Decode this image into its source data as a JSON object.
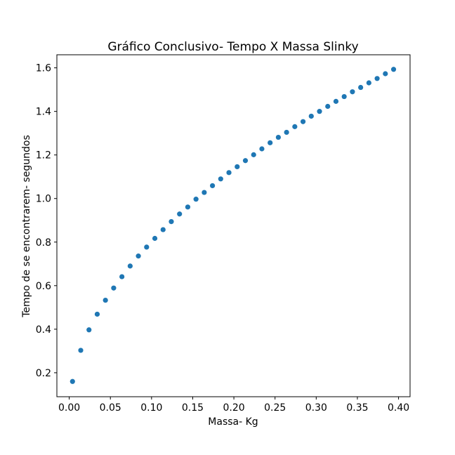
{
  "chart_data": {
    "type": "scatter",
    "title": "Gráfico Conclusivo- Tempo X Massa Slinky",
    "xlabel": "Massa- Kg",
    "ylabel": "Tempo de se encontrarem- segundos",
    "xlim": [
      -0.015,
      0.414
    ],
    "ylim": [
      0.09,
      1.66
    ],
    "xticks": [
      "0.00",
      "0.05",
      "0.10",
      "0.15",
      "0.20",
      "0.25",
      "0.30",
      "0.35",
      "0.40"
    ],
    "yticks": [
      "0.2",
      "0.4",
      "0.6",
      "0.8",
      "1.0",
      "1.2",
      "1.4",
      "1.6"
    ],
    "grid": false,
    "marker_color": "#1f77b4",
    "points": [
      {
        "x": 0.004,
        "y": 0.16
      },
      {
        "x": 0.014,
        "y": 0.303
      },
      {
        "x": 0.024,
        "y": 0.397
      },
      {
        "x": 0.034,
        "y": 0.469
      },
      {
        "x": 0.044,
        "y": 0.533
      },
      {
        "x": 0.054,
        "y": 0.589
      },
      {
        "x": 0.064,
        "y": 0.641
      },
      {
        "x": 0.074,
        "y": 0.69
      },
      {
        "x": 0.084,
        "y": 0.736
      },
      {
        "x": 0.094,
        "y": 0.777
      },
      {
        "x": 0.104,
        "y": 0.817
      },
      {
        "x": 0.114,
        "y": 0.857
      },
      {
        "x": 0.124,
        "y": 0.894
      },
      {
        "x": 0.134,
        "y": 0.929
      },
      {
        "x": 0.144,
        "y": 0.961
      },
      {
        "x": 0.154,
        "y": 0.997
      },
      {
        "x": 0.164,
        "y": 1.028
      },
      {
        "x": 0.174,
        "y": 1.059
      },
      {
        "x": 0.184,
        "y": 1.09
      },
      {
        "x": 0.194,
        "y": 1.119
      },
      {
        "x": 0.204,
        "y": 1.146
      },
      {
        "x": 0.214,
        "y": 1.174
      },
      {
        "x": 0.224,
        "y": 1.201
      },
      {
        "x": 0.234,
        "y": 1.228
      },
      {
        "x": 0.244,
        "y": 1.256
      },
      {
        "x": 0.254,
        "y": 1.281
      },
      {
        "x": 0.264,
        "y": 1.304
      },
      {
        "x": 0.274,
        "y": 1.33
      },
      {
        "x": 0.284,
        "y": 1.353
      },
      {
        "x": 0.294,
        "y": 1.378
      },
      {
        "x": 0.304,
        "y": 1.4
      },
      {
        "x": 0.314,
        "y": 1.423
      },
      {
        "x": 0.324,
        "y": 1.446
      },
      {
        "x": 0.334,
        "y": 1.468
      },
      {
        "x": 0.344,
        "y": 1.49
      },
      {
        "x": 0.354,
        "y": 1.51
      },
      {
        "x": 0.364,
        "y": 1.531
      },
      {
        "x": 0.374,
        "y": 1.551
      },
      {
        "x": 0.384,
        "y": 1.573
      },
      {
        "x": 0.394,
        "y": 1.593
      }
    ]
  }
}
